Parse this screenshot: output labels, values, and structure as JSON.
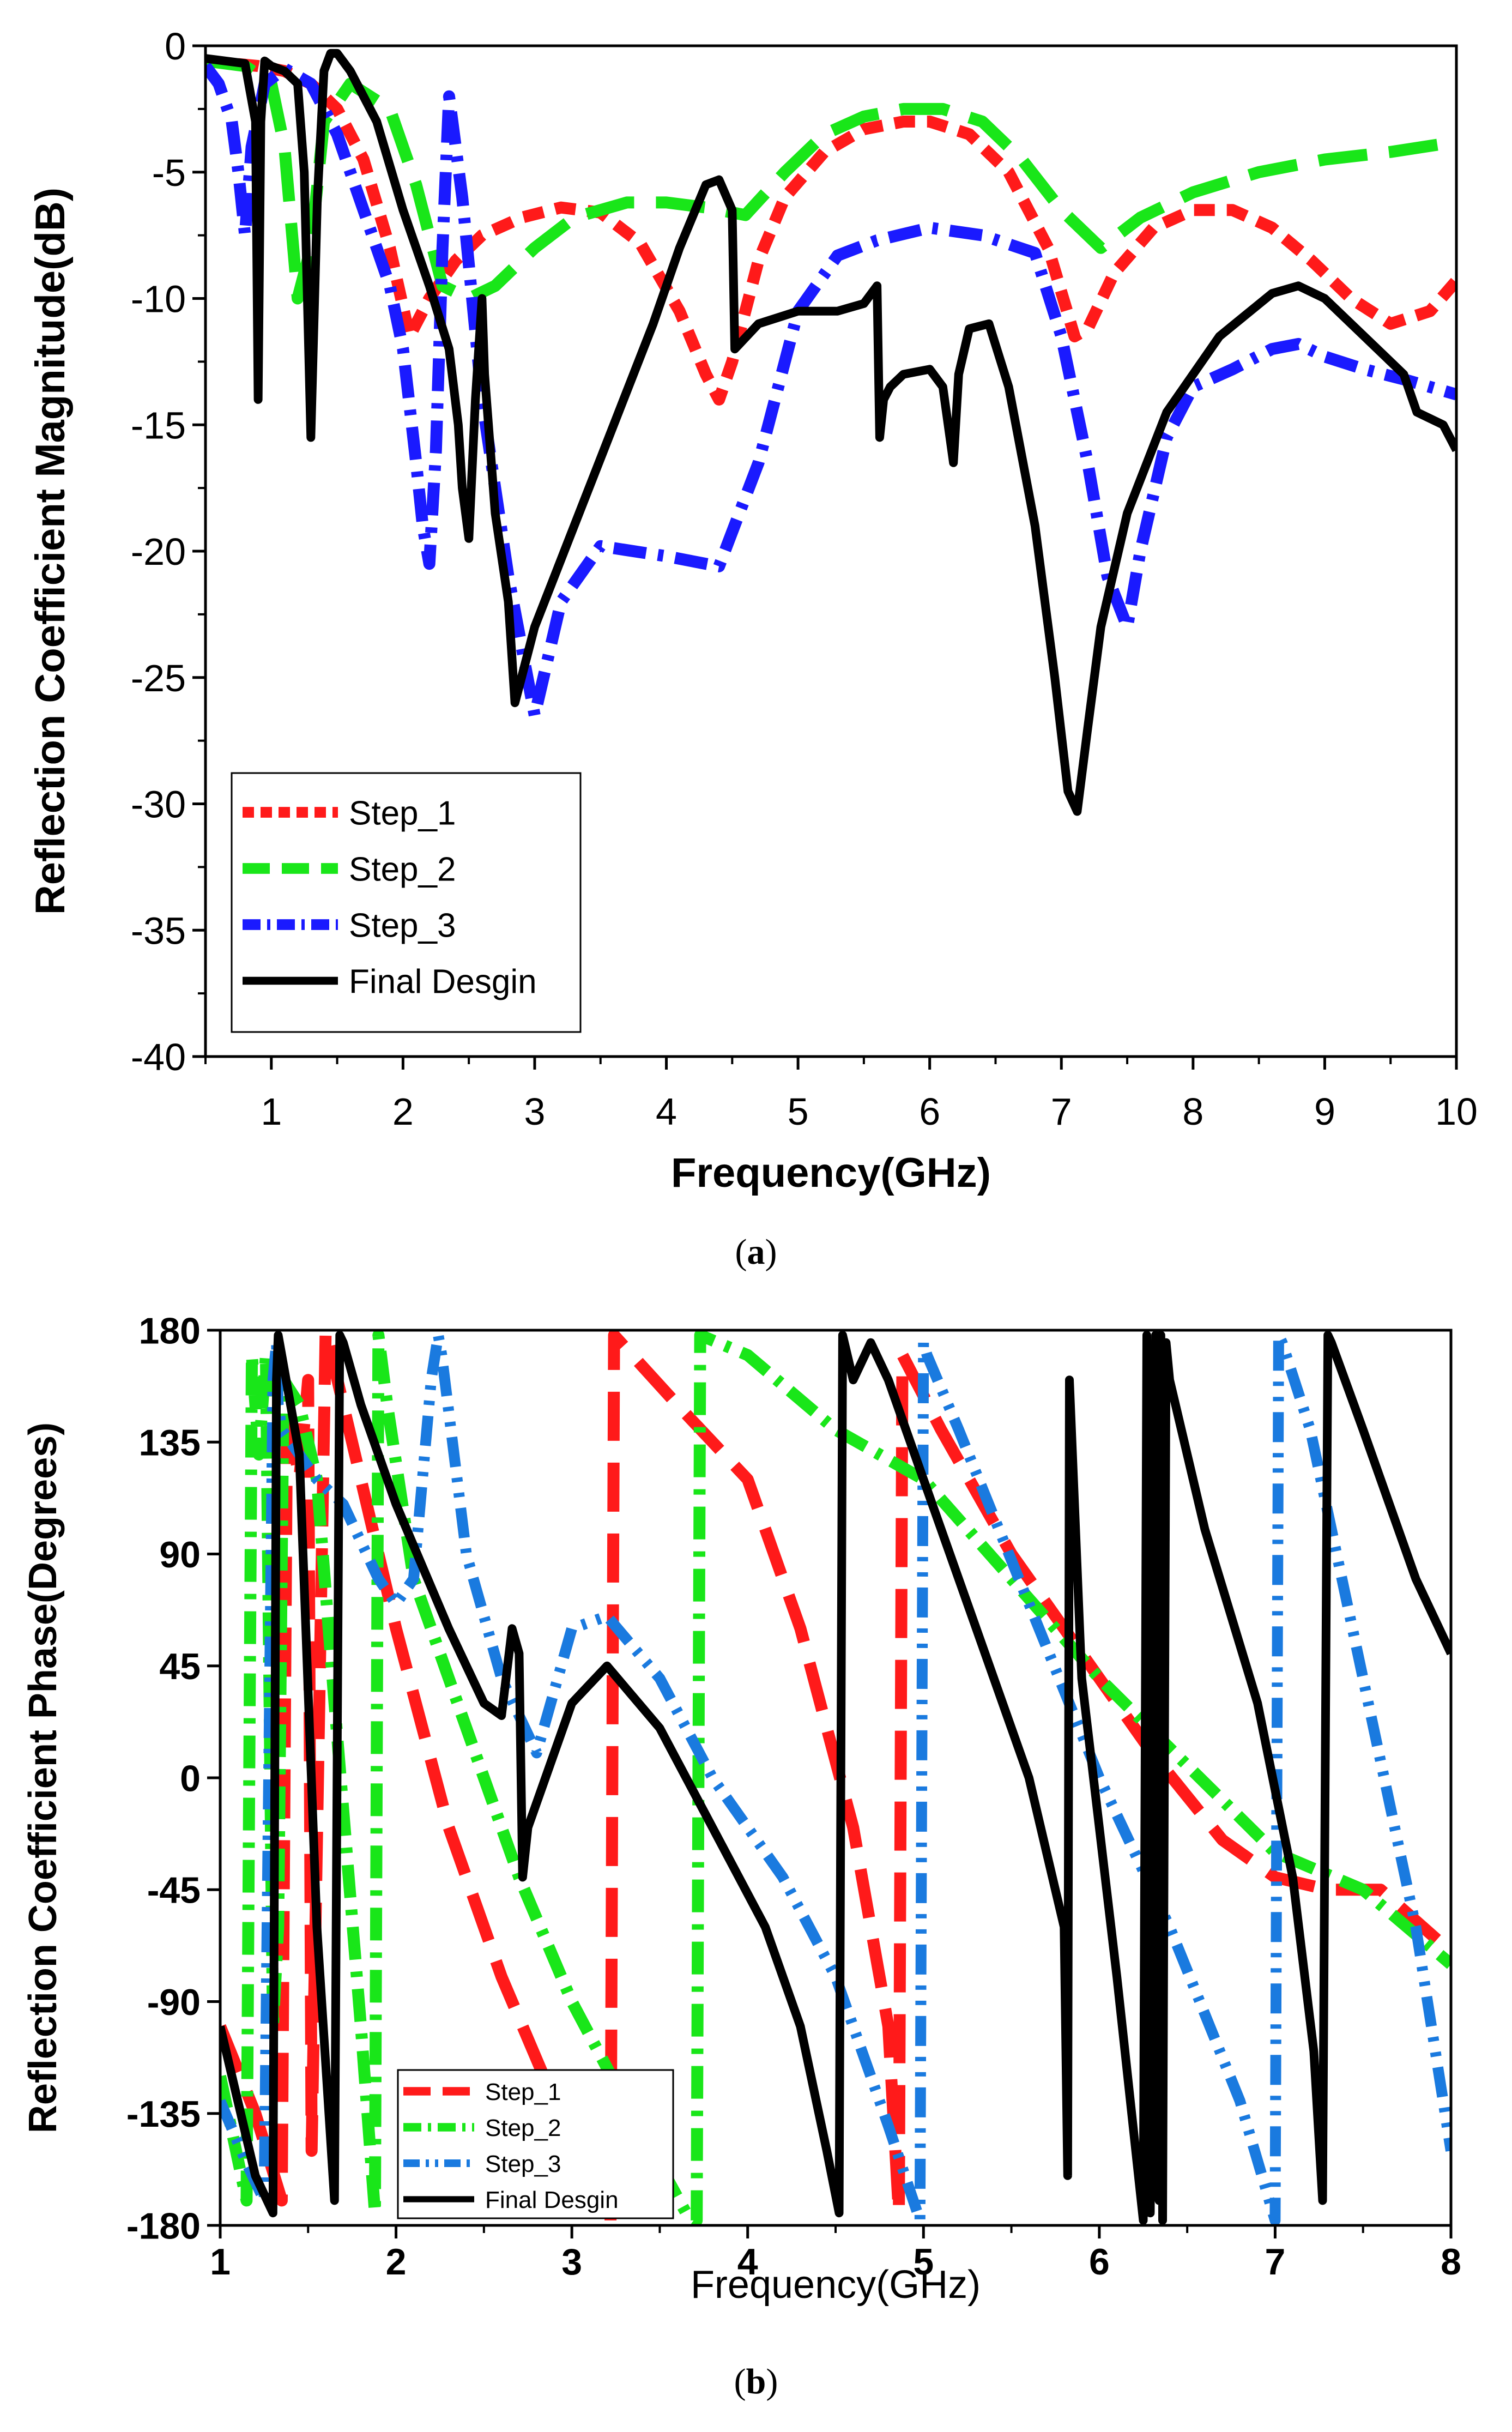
{
  "chart_data": [
    {
      "type": "line",
      "panel_label": "(a)",
      "panel_letter": "a",
      "title": "",
      "xlabel": "Frequency(GHz)",
      "ylabel": "Reflection Coefficient Magnitude(dB)",
      "xlim": [
        0.5,
        10
      ],
      "ylim": [
        -40,
        0
      ],
      "xticks": [
        1,
        2,
        3,
        4,
        5,
        6,
        7,
        8,
        9,
        10
      ],
      "xtick_labels": [
        "1",
        "2",
        "3",
        "4",
        "5",
        "6",
        "7",
        "8",
        "9",
        "10"
      ],
      "yticks": [
        0,
        -5,
        -10,
        -15,
        -20,
        -25,
        -30,
        -35,
        -40
      ],
      "ytick_labels": [
        "0",
        "-5",
        "-10",
        "-15",
        "-20",
        "-25",
        "-30",
        "-35",
        "-40"
      ],
      "grid": false,
      "legend_position": "bottom-left",
      "series": [
        {
          "name": "Step_1",
          "color": "#ff1a1a",
          "dash": "short-dash",
          "x": [
            0.5,
            0.9,
            1.1,
            1.3,
            1.5,
            1.7,
            1.9,
            2.05,
            2.2,
            2.4,
            2.6,
            2.9,
            3.2,
            3.5,
            3.8,
            4.1,
            4.3,
            4.4,
            4.5,
            4.7,
            4.9,
            5.2,
            5.5,
            5.8,
            6.0,
            6.3,
            6.6,
            6.9,
            7.1,
            7.2,
            7.4,
            7.7,
            8.0,
            8.3,
            8.6,
            8.9,
            9.2,
            9.5,
            9.8,
            10.0
          ],
          "y": [
            -0.6,
            -0.8,
            -1.0,
            -1.5,
            -2.5,
            -4.5,
            -8.0,
            -11.5,
            -10.0,
            -8.5,
            -7.5,
            -6.8,
            -6.4,
            -6.6,
            -7.8,
            -10.5,
            -13.0,
            -14.0,
            -12.5,
            -8.5,
            -6.0,
            -4.2,
            -3.3,
            -3.0,
            -3.0,
            -3.5,
            -5.0,
            -8.0,
            -11.5,
            -11.2,
            -9.0,
            -7.2,
            -6.5,
            -6.5,
            -7.2,
            -8.5,
            -10.0,
            -11.0,
            -10.5,
            -9.3
          ]
        },
        {
          "name": "Step_2",
          "color": "#19e619",
          "dash": "long-dash",
          "x": [
            0.5,
            0.8,
            1.0,
            1.1,
            1.2,
            1.3,
            1.4,
            1.6,
            1.9,
            2.1,
            2.3,
            2.5,
            2.7,
            3.0,
            3.3,
            3.7,
            4.0,
            4.3,
            4.6,
            4.9,
            5.2,
            5.5,
            5.8,
            6.1,
            6.4,
            6.7,
            7.0,
            7.3,
            7.6,
            8.0,
            8.5,
            9.0,
            9.5,
            10.0
          ],
          "y": [
            -0.6,
            -0.8,
            -1.5,
            -4.0,
            -10.0,
            -8.0,
            -3.0,
            -1.5,
            -2.5,
            -5.5,
            -9.5,
            -10.0,
            -9.5,
            -8.0,
            -6.8,
            -6.2,
            -6.2,
            -6.4,
            -6.7,
            -5.0,
            -3.5,
            -2.8,
            -2.5,
            -2.5,
            -3.0,
            -4.5,
            -6.5,
            -8.0,
            -6.8,
            -5.8,
            -5.0,
            -4.5,
            -4.2,
            -3.8
          ]
        },
        {
          "name": "Step_3",
          "color": "#1a1aff",
          "dash": "dash-dot",
          "x": [
            0.5,
            0.6,
            0.7,
            0.75,
            0.8,
            0.85,
            0.95,
            1.1,
            1.3,
            1.5,
            1.7,
            1.9,
            2.0,
            2.1,
            2.15,
            2.2,
            2.25,
            2.3,
            2.35,
            2.45,
            2.6,
            2.8,
            3.0,
            3.2,
            3.5,
            4.0,
            4.4,
            4.7,
            5.0,
            5.3,
            5.6,
            6.0,
            6.4,
            6.8,
            7.0,
            7.2,
            7.35,
            7.5,
            7.6,
            7.8,
            8.0,
            8.3,
            8.6,
            8.8,
            9.0,
            9.3,
            9.6,
            10.0
          ],
          "y": [
            -0.8,
            -1.5,
            -3.0,
            -5.0,
            -7.5,
            -4.0,
            -1.5,
            -0.9,
            -1.5,
            -3.5,
            -6.5,
            -9.5,
            -12.0,
            -16.5,
            -19.0,
            -20.5,
            -16.0,
            -8.0,
            -2.0,
            -6.0,
            -14.0,
            -21.0,
            -26.5,
            -22.0,
            -19.8,
            -20.2,
            -20.6,
            -16.5,
            -10.5,
            -8.3,
            -7.7,
            -7.2,
            -7.5,
            -8.2,
            -11.5,
            -16.5,
            -21.0,
            -23.0,
            -20.0,
            -15.5,
            -13.5,
            -12.8,
            -12.0,
            -11.8,
            -12.3,
            -12.8,
            -13.2,
            -13.8
          ]
        },
        {
          "name": "Final Desgin",
          "color": "#000000",
          "dash": "solid",
          "x": [
            0.5,
            0.8,
            0.88,
            0.9,
            0.92,
            0.95,
            1.0,
            1.1,
            1.2,
            1.25,
            1.3,
            1.35,
            1.4,
            1.45,
            1.5,
            1.6,
            1.8,
            2.0,
            2.2,
            2.35,
            2.42,
            2.45,
            2.5,
            2.55,
            2.6,
            2.62,
            2.7,
            2.8,
            2.85,
            2.9,
            3.0,
            3.3,
            3.6,
            3.9,
            4.1,
            4.3,
            4.4,
            4.5,
            4.52,
            4.7,
            5.0,
            5.3,
            5.5,
            5.6,
            5.62,
            5.65,
            5.7,
            5.8,
            6.0,
            6.1,
            6.18,
            6.22,
            6.3,
            6.45,
            6.6,
            6.8,
            6.95,
            7.05,
            7.12,
            7.2,
            7.3,
            7.5,
            7.8,
            8.2,
            8.6,
            8.8,
            9.0,
            9.3,
            9.6,
            9.7,
            9.9,
            10.0
          ],
          "y": [
            -0.5,
            -0.7,
            -3.0,
            -14.0,
            -3.0,
            -0.6,
            -0.8,
            -1.0,
            -1.5,
            -5.0,
            -15.5,
            -6.0,
            -1.0,
            -0.3,
            -0.3,
            -1.0,
            -3.0,
            -6.5,
            -9.5,
            -12.0,
            -15.0,
            -17.5,
            -19.5,
            -14.0,
            -10.0,
            -13.0,
            -18.5,
            -22.0,
            -26.0,
            -25.0,
            -23.0,
            -19.0,
            -15.0,
            -11.0,
            -8.0,
            -5.5,
            -5.3,
            -6.5,
            -12.0,
            -11.0,
            -10.5,
            -10.5,
            -10.2,
            -9.5,
            -15.5,
            -14.0,
            -13.5,
            -13.0,
            -12.8,
            -13.5,
            -16.5,
            -13.0,
            -11.2,
            -11.0,
            -13.5,
            -19.0,
            -25.0,
            -29.5,
            -30.3,
            -27.0,
            -23.0,
            -18.5,
            -14.5,
            -11.5,
            -9.8,
            -9.5,
            -10.0,
            -11.5,
            -13.0,
            -14.5,
            -15.0,
            -16.0
          ]
        }
      ]
    },
    {
      "type": "line",
      "panel_label": "(b)",
      "panel_letter": "b",
      "title": "",
      "xlabel": "Frequency(GHz)",
      "ylabel": "Reflection Coefficient Phase(Degrees)",
      "xlim": [
        1,
        8
      ],
      "ylim": [
        -180,
        180
      ],
      "xticks": [
        1,
        2,
        3,
        4,
        5,
        6,
        7,
        8
      ],
      "xtick_labels": [
        "1",
        "2",
        "3",
        "4",
        "5",
        "6",
        "7",
        "8"
      ],
      "yticks": [
        180,
        135,
        90,
        45,
        0,
        -45,
        -90,
        -135,
        -180
      ],
      "ytick_labels": [
        "180",
        "135",
        "90",
        "45",
        "0",
        "-45",
        "-90",
        "-135",
        "-180"
      ],
      "grid": false,
      "legend_position": "bottom-center",
      "series": [
        {
          "name": "Step_1",
          "color": "#ff1a1a",
          "dash": "long-dash",
          "x": [
            1.0,
            1.2,
            1.35,
            1.38,
            1.45,
            1.5,
            1.52,
            1.6,
            1.7,
            2.0,
            2.3,
            2.6,
            2.9,
            3.1,
            3.22,
            3.24,
            3.6,
            4.0,
            4.3,
            4.6,
            4.8,
            4.86,
            4.88,
            5.1,
            5.5,
            5.9,
            6.3,
            6.7,
            7.0,
            7.3,
            7.6,
            8.0
          ],
          "y": [
            -100,
            -135,
            -170,
            150,
            120,
            160,
            -150,
            180,
            150,
            60,
            -20,
            -80,
            -130,
            -160,
            -178,
            178,
            150,
            120,
            60,
            -20,
            -100,
            -175,
            170,
            140,
            90,
            50,
            10,
            -25,
            -40,
            -45,
            -45,
            -70
          ]
        },
        {
          "name": "Step_2",
          "color": "#19e619",
          "dash": "dash-dot",
          "x": [
            1.0,
            1.15,
            1.18,
            1.22,
            1.26,
            1.3,
            1.33,
            1.36,
            1.45,
            1.55,
            1.65,
            1.8,
            1.88,
            1.9,
            1.95,
            2.1,
            2.4,
            2.7,
            3.0,
            3.3,
            3.65,
            3.71,
            3.73,
            4.0,
            4.5,
            5.0,
            5.5,
            6.0,
            6.5,
            7.0,
            7.5,
            8.0
          ],
          "y": [
            -120,
            -170,
            170,
            130,
            170,
            -100,
            -60,
            160,
            150,
            120,
            30,
            -100,
            -175,
            178,
            150,
            80,
            20,
            -40,
            -90,
            -130,
            -175,
            -178,
            178,
            170,
            140,
            120,
            80,
            40,
            5,
            -30,
            -45,
            -75
          ]
        },
        {
          "name": "Step_3",
          "color": "#1a7adf",
          "dash": "dash-dot-dot",
          "x": [
            1.0,
            1.15,
            1.25,
            1.3,
            1.32,
            1.33,
            1.35,
            1.45,
            1.55,
            1.7,
            1.9,
            2.0,
            2.1,
            2.2,
            2.24,
            2.26,
            2.4,
            2.6,
            2.8,
            3.0,
            3.2,
            3.5,
            3.8,
            4.2,
            4.5,
            4.8,
            4.98,
            5.0,
            5.02,
            5.2,
            5.6,
            6.0,
            6.4,
            6.8,
            7.0,
            7.02,
            7.04,
            7.2,
            7.5,
            7.8,
            8.0
          ],
          "y": [
            -130,
            -155,
            -170,
            160,
            175,
            150,
            140,
            130,
            120,
            110,
            80,
            70,
            80,
            160,
            178,
            170,
            90,
            40,
            10,
            60,
            65,
            40,
            0,
            -40,
            -80,
            -140,
            -178,
            175,
            170,
            140,
            70,
            0,
            -60,
            -130,
            -178,
            178,
            175,
            140,
            40,
            -60,
            -150
          ]
        },
        {
          "name": "Final Desgin",
          "color": "#000000",
          "dash": "solid",
          "x": [
            1.0,
            1.1,
            1.2,
            1.3,
            1.32,
            1.33,
            1.35,
            1.45,
            1.55,
            1.65,
            1.68,
            1.7,
            1.8,
            2.0,
            2.3,
            2.5,
            2.6,
            2.66,
            2.7,
            2.72,
            2.75,
            2.8,
            3.0,
            3.2,
            3.5,
            3.8,
            4.1,
            4.3,
            4.45,
            4.52,
            4.54,
            4.6,
            4.7,
            4.8,
            5.0,
            5.3,
            5.6,
            5.8,
            5.82,
            5.83,
            5.9,
            6.1,
            6.25,
            6.27,
            6.29,
            6.32,
            6.34,
            6.35,
            6.36,
            6.38,
            6.4,
            6.6,
            6.9,
            7.1,
            7.22,
            7.27,
            7.3,
            7.32,
            7.5,
            7.8,
            8.0
          ],
          "y": [
            -100,
            -130,
            -160,
            -175,
            160,
            178,
            170,
            130,
            -60,
            -170,
            178,
            175,
            150,
            110,
            60,
            30,
            25,
            60,
            50,
            -40,
            -20,
            -10,
            30,
            45,
            20,
            -20,
            -60,
            -100,
            -150,
            -175,
            178,
            160,
            175,
            160,
            120,
            60,
            0,
            -60,
            -160,
            160,
            40,
            -80,
            -178,
            178,
            -175,
            178,
            -170,
            178,
            -178,
            175,
            160,
            100,
            30,
            -40,
            -110,
            -170,
            178,
            175,
            140,
            80,
            50
          ]
        }
      ]
    }
  ]
}
